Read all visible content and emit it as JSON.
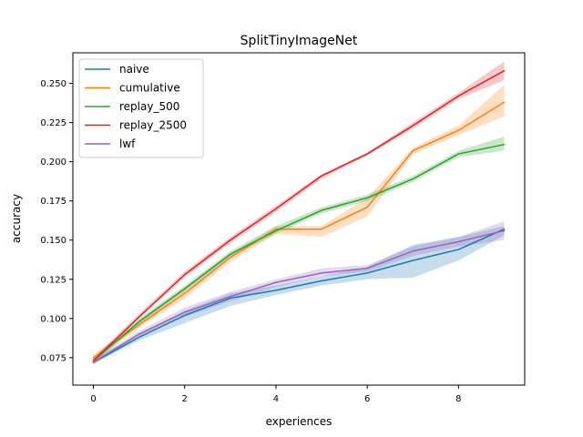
{
  "chart_data": {
    "type": "line",
    "title": "SplitTinyImageNet",
    "xlabel": "experiences",
    "ylabel": "accuracy",
    "xlim": [
      -0.45,
      9.45
    ],
    "ylim": [
      0.0575,
      0.2695
    ],
    "xticks": [
      0,
      2,
      4,
      6,
      8
    ],
    "xtick_labels": [
      "0",
      "2",
      "4",
      "6",
      "8"
    ],
    "yticks": [
      0.075,
      0.1,
      0.125,
      0.15,
      0.175,
      0.2,
      0.225,
      0.25
    ],
    "ytick_labels": [
      "0.075",
      "0.100",
      "0.125",
      "0.150",
      "0.175",
      "0.200",
      "0.225",
      "0.250"
    ],
    "grid": false,
    "legend_position": "top-left",
    "x": [
      0,
      1,
      2,
      3,
      4,
      5,
      6,
      7,
      8,
      9
    ],
    "series": [
      {
        "name": "naive",
        "color": "#1f77b4",
        "values": [
          0.072,
          0.088,
          0.102,
          0.113,
          0.118,
          0.124,
          0.129,
          0.137,
          0.144,
          0.157
        ],
        "lower": [
          0.071,
          0.086,
          0.097,
          0.108,
          0.115,
          0.121,
          0.125,
          0.126,
          0.137,
          0.153
        ],
        "upper": [
          0.074,
          0.09,
          0.105,
          0.116,
          0.121,
          0.127,
          0.133,
          0.147,
          0.152,
          0.159
        ]
      },
      {
        "name": "cumulative",
        "color": "#ff7f0e",
        "values": [
          0.075,
          0.096,
          0.116,
          0.139,
          0.157,
          0.157,
          0.171,
          0.207,
          0.22,
          0.238
        ],
        "lower": [
          0.073,
          0.094,
          0.113,
          0.136,
          0.154,
          0.152,
          0.165,
          0.205,
          0.217,
          0.229
        ],
        "upper": [
          0.077,
          0.098,
          0.119,
          0.141,
          0.159,
          0.159,
          0.177,
          0.209,
          0.223,
          0.249
        ]
      },
      {
        "name": "replay_500",
        "color": "#2ca02c",
        "values": [
          0.073,
          0.098,
          0.119,
          0.141,
          0.156,
          0.169,
          0.177,
          0.189,
          0.205,
          0.211
        ],
        "lower": [
          0.071,
          0.096,
          0.117,
          0.139,
          0.154,
          0.167,
          0.175,
          0.187,
          0.203,
          0.207
        ],
        "upper": [
          0.075,
          0.1,
          0.121,
          0.143,
          0.159,
          0.171,
          0.179,
          0.191,
          0.207,
          0.216
        ]
      },
      {
        "name": "replay_2500",
        "color": "#d62728",
        "values": [
          0.073,
          0.101,
          0.128,
          0.15,
          0.17,
          0.191,
          0.205,
          0.223,
          0.242,
          0.258
        ],
        "lower": [
          0.072,
          0.1,
          0.126,
          0.148,
          0.168,
          0.189,
          0.204,
          0.221,
          0.24,
          0.252
        ],
        "upper": [
          0.075,
          0.103,
          0.13,
          0.152,
          0.172,
          0.192,
          0.206,
          0.225,
          0.244,
          0.264
        ]
      },
      {
        "name": "lwf",
        "color": "#9467bd",
        "values": [
          0.072,
          0.09,
          0.104,
          0.114,
          0.123,
          0.129,
          0.132,
          0.143,
          0.149,
          0.156
        ],
        "lower": [
          0.071,
          0.088,
          0.101,
          0.111,
          0.12,
          0.127,
          0.13,
          0.14,
          0.146,
          0.15
        ],
        "upper": [
          0.074,
          0.092,
          0.107,
          0.117,
          0.125,
          0.132,
          0.134,
          0.146,
          0.152,
          0.162
        ]
      }
    ]
  }
}
